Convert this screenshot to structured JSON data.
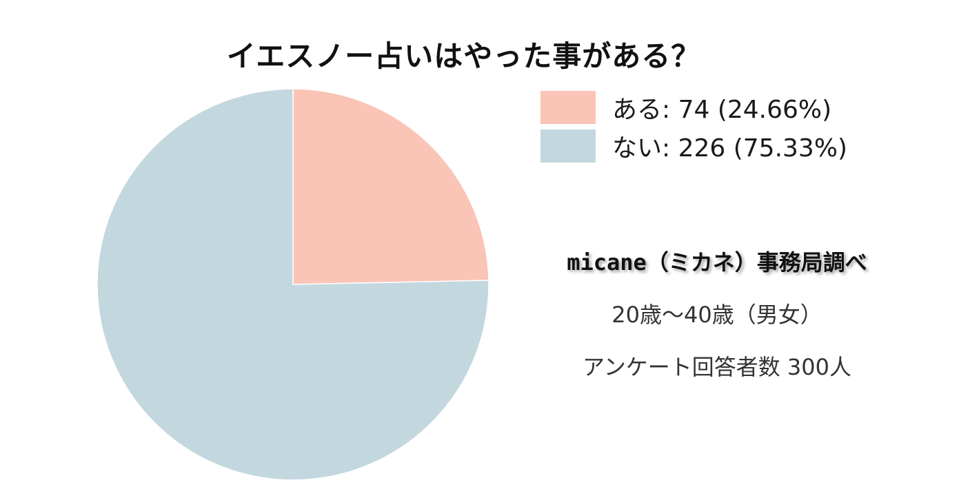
{
  "chart_data": {
    "type": "pie",
    "title": "イエスノー占いはやった事がある？",
    "slices": [
      {
        "label": "ある",
        "value": 74,
        "percent": 24.66,
        "color": "#fac4b6",
        "legend_text": "ある: 74 (24.66%)"
      },
      {
        "label": "ない",
        "value": 226,
        "percent": 75.33,
        "color": "#c3d7df",
        "legend_text": "ない: 226 (75.33%)"
      }
    ],
    "legend_placement": "top-right"
  },
  "notes": {
    "source": "micane（ミカネ）事務局調べ",
    "age_range": "20歳～40歳（男女）",
    "respondents": "アンケート回答者数 300人"
  }
}
